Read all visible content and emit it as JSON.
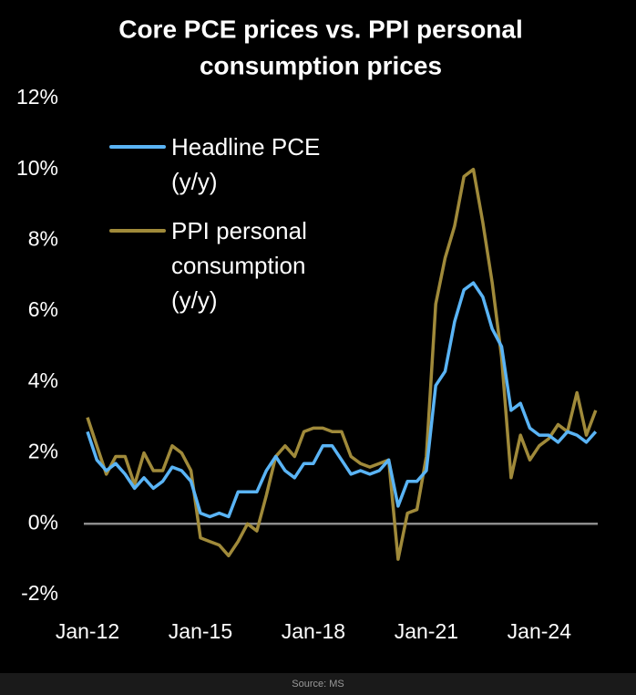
{
  "chart_data": {
    "type": "line",
    "title": [
      "Core PCE prices vs. PPI personal",
      "consumption prices"
    ],
    "source": "Source: MS",
    "categories": [
      "Jan-12",
      null,
      null,
      null,
      null,
      null,
      null,
      null,
      null,
      null,
      null,
      null,
      "Jan-15",
      null,
      null,
      null,
      null,
      null,
      null,
      null,
      null,
      null,
      null,
      null,
      "Jan-18",
      null,
      null,
      null,
      null,
      null,
      null,
      null,
      null,
      null,
      null,
      null,
      "Jan-21",
      null,
      null,
      null,
      null,
      null,
      null,
      null,
      null,
      null,
      null,
      null,
      "Jan-24",
      null,
      null,
      null,
      null,
      null,
      null
    ],
    "series": [
      {
        "name": "Headline PCE (y/y)",
        "color": "#5ab4f5",
        "values": [
          2.6,
          1.8,
          1.5,
          1.7,
          1.4,
          1.0,
          1.3,
          1.0,
          1.2,
          1.6,
          1.5,
          1.2,
          0.3,
          0.2,
          0.3,
          0.2,
          0.9,
          0.9,
          0.9,
          1.5,
          1.9,
          1.5,
          1.3,
          1.7,
          1.7,
          2.2,
          2.2,
          1.8,
          1.4,
          1.5,
          1.4,
          1.5,
          1.8,
          0.5,
          1.2,
          1.2,
          1.5,
          3.9,
          4.3,
          5.7,
          6.6,
          6.8,
          6.4,
          5.5,
          5.0,
          3.2,
          3.4,
          2.7,
          2.5,
          2.5,
          2.3,
          2.6,
          2.5,
          2.3,
          2.6
        ]
      },
      {
        "name": "PPI personal consumption (y/y)",
        "color": "#a08a3a",
        "values": [
          3.0,
          2.2,
          1.4,
          1.9,
          1.9,
          1.1,
          2.0,
          1.5,
          1.5,
          2.2,
          2.0,
          1.5,
          -0.4,
          -0.5,
          -0.6,
          -0.9,
          -0.5,
          0.0,
          -0.2,
          0.8,
          1.9,
          2.2,
          1.9,
          2.6,
          2.7,
          2.7,
          2.6,
          2.6,
          1.9,
          1.7,
          1.6,
          1.7,
          1.8,
          -1.0,
          0.3,
          0.4,
          1.9,
          6.2,
          7.5,
          8.4,
          9.8,
          10.0,
          8.5,
          6.8,
          4.7,
          1.3,
          2.5,
          1.8,
          2.2,
          2.4,
          2.8,
          2.6,
          3.7,
          2.5,
          3.2
        ]
      }
    ],
    "ylim": [
      -2,
      12
    ],
    "yticks": [
      {
        "value": -2,
        "label": "-2%"
      },
      {
        "value": 0,
        "label": "0%"
      },
      {
        "value": 2,
        "label": "2%"
      },
      {
        "value": 4,
        "label": "4%"
      },
      {
        "value": 6,
        "label": "6%"
      },
      {
        "value": 8,
        "label": "8%"
      },
      {
        "value": 10,
        "label": "10%"
      },
      {
        "value": 12,
        "label": "12%"
      }
    ],
    "zero_line": true,
    "grid": false,
    "legend": "upper left"
  }
}
